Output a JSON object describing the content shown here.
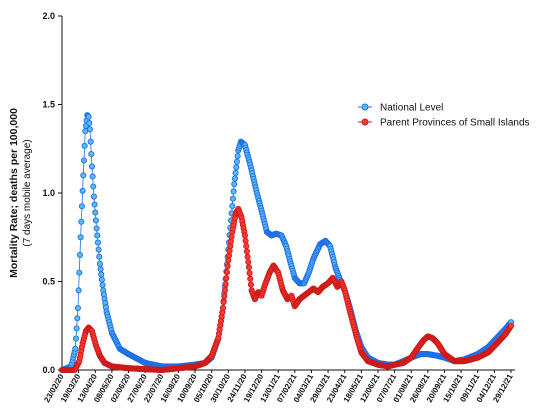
{
  "chart_data": {
    "type": "scatter",
    "title": "",
    "xlabel": "",
    "ylabel": "Mortality Rate; deaths per 100,000",
    "ylabel_secondary": "(7 days mobile average)",
    "ylim": [
      0,
      2.0
    ],
    "yticks": [
      "0.0",
      "0.5",
      "1.0",
      "1.5",
      "2.0"
    ],
    "x_start": "23/02/20",
    "x_end": "29/12/21",
    "xticks": [
      "23/02/20",
      "19/03/20",
      "13/04/20",
      "08/05/20",
      "02/06/20",
      "27/06/20",
      "22/07/20",
      "16/08/20",
      "10/09/20",
      "05/10/20",
      "30/10/20",
      "24/11/20",
      "19/12/20",
      "13/01/21",
      "07/02/21",
      "04/03/21",
      "29/03/21",
      "23/04/21",
      "18/05/21",
      "12/06/21",
      "07/07/21",
      "01/08/21",
      "26/08/21",
      "20/09/21",
      "15/10/21",
      "09/11/21",
      "04/12/21",
      "29/12/21"
    ],
    "legend_position": "right",
    "grid": false,
    "series": [
      {
        "name": "National Level",
        "color": "#1f6fe5",
        "fill": "#5bb8f5",
        "keypoints": [
          [
            "23/02/20",
            0.0
          ],
          [
            "08/03/20",
            0.02
          ],
          [
            "14/03/20",
            0.12
          ],
          [
            "18/03/20",
            0.35
          ],
          [
            "22/03/20",
            0.75
          ],
          [
            "26/03/20",
            1.1
          ],
          [
            "29/03/20",
            1.35
          ],
          [
            "01/04/20",
            1.44
          ],
          [
            "03/04/20",
            1.43
          ],
          [
            "05/04/20",
            1.36
          ],
          [
            "08/04/20",
            1.15
          ],
          [
            "11/04/20",
            0.98
          ],
          [
            "15/04/20",
            0.8
          ],
          [
            "20/04/20",
            0.6
          ],
          [
            "25/04/20",
            0.45
          ],
          [
            "30/04/20",
            0.33
          ],
          [
            "08/05/20",
            0.21
          ],
          [
            "20/05/20",
            0.12
          ],
          [
            "02/06/20",
            0.09
          ],
          [
            "27/06/20",
            0.04
          ],
          [
            "22/07/20",
            0.02
          ],
          [
            "16/08/20",
            0.02
          ],
          [
            "10/09/20",
            0.03
          ],
          [
            "25/09/20",
            0.04
          ],
          [
            "05/10/20",
            0.07
          ],
          [
            "15/10/20",
            0.18
          ],
          [
            "22/10/20",
            0.35
          ],
          [
            "30/10/20",
            0.68
          ],
          [
            "08/11/20",
            1.05
          ],
          [
            "14/11/20",
            1.24
          ],
          [
            "18/11/20",
            1.29
          ],
          [
            "24/11/20",
            1.27
          ],
          [
            "02/12/20",
            1.16
          ],
          [
            "12/12/20",
            1.0
          ],
          [
            "19/12/20",
            0.9
          ],
          [
            "27/12/20",
            0.78
          ],
          [
            "03/01/21",
            0.76
          ],
          [
            "10/01/21",
            0.77
          ],
          [
            "18/01/21",
            0.76
          ],
          [
            "25/01/21",
            0.7
          ],
          [
            "01/02/21",
            0.6
          ],
          [
            "07/02/21",
            0.52
          ],
          [
            "14/02/21",
            0.49
          ],
          [
            "21/02/21",
            0.49
          ],
          [
            "28/02/21",
            0.55
          ],
          [
            "07/03/21",
            0.63
          ],
          [
            "17/03/21",
            0.71
          ],
          [
            "25/03/21",
            0.73
          ],
          [
            "01/04/21",
            0.7
          ],
          [
            "09/04/21",
            0.58
          ],
          [
            "17/04/21",
            0.5
          ],
          [
            "23/04/21",
            0.45
          ],
          [
            "01/05/21",
            0.35
          ],
          [
            "10/05/21",
            0.22
          ],
          [
            "18/05/21",
            0.13
          ],
          [
            "28/05/21",
            0.07
          ],
          [
            "12/06/21",
            0.04
          ],
          [
            "27/06/21",
            0.03
          ],
          [
            "07/07/21",
            0.03
          ],
          [
            "20/07/21",
            0.05
          ],
          [
            "01/08/21",
            0.07
          ],
          [
            "15/08/21",
            0.09
          ],
          [
            "26/08/21",
            0.09
          ],
          [
            "10/09/21",
            0.08
          ],
          [
            "20/09/21",
            0.07
          ],
          [
            "05/10/21",
            0.05
          ],
          [
            "20/10/21",
            0.06
          ],
          [
            "09/11/21",
            0.09
          ],
          [
            "25/11/21",
            0.13
          ],
          [
            "10/12/21",
            0.19
          ],
          [
            "20/12/21",
            0.23
          ],
          [
            "29/12/21",
            0.27
          ]
        ]
      },
      {
        "name": "Parent Provinces of Small Islands",
        "color": "#cc1a1a",
        "fill": "#ff3b30",
        "keypoints": [
          [
            "23/02/20",
            0.0
          ],
          [
            "13/03/20",
            0.0
          ],
          [
            "20/03/20",
            0.05
          ],
          [
            "25/03/20",
            0.15
          ],
          [
            "30/03/20",
            0.22
          ],
          [
            "03/04/20",
            0.24
          ],
          [
            "08/04/20",
            0.22
          ],
          [
            "14/04/20",
            0.14
          ],
          [
            "20/04/20",
            0.08
          ],
          [
            "27/04/20",
            0.04
          ],
          [
            "08/05/20",
            0.02
          ],
          [
            "02/06/20",
            0.01
          ],
          [
            "22/07/20",
            0.0
          ],
          [
            "16/08/20",
            0.01
          ],
          [
            "10/09/20",
            0.02
          ],
          [
            "25/09/20",
            0.04
          ],
          [
            "05/10/20",
            0.08
          ],
          [
            "15/10/20",
            0.18
          ],
          [
            "22/10/20",
            0.35
          ],
          [
            "30/10/20",
            0.62
          ],
          [
            "05/11/20",
            0.78
          ],
          [
            "10/11/20",
            0.88
          ],
          [
            "14/11/20",
            0.91
          ],
          [
            "19/11/20",
            0.86
          ],
          [
            "24/11/20",
            0.76
          ],
          [
            "30/11/20",
            0.58
          ],
          [
            "04/12/20",
            0.45
          ],
          [
            "09/12/20",
            0.4
          ],
          [
            "14/12/20",
            0.44
          ],
          [
            "19/12/20",
            0.42
          ],
          [
            "24/12/20",
            0.48
          ],
          [
            "31/12/20",
            0.55
          ],
          [
            "06/01/21",
            0.59
          ],
          [
            "13/01/21",
            0.55
          ],
          [
            "20/01/21",
            0.45
          ],
          [
            "27/01/21",
            0.4
          ],
          [
            "02/02/21",
            0.42
          ],
          [
            "07/02/21",
            0.36
          ],
          [
            "14/02/21",
            0.4
          ],
          [
            "21/02/21",
            0.42
          ],
          [
            "28/02/21",
            0.44
          ],
          [
            "07/03/21",
            0.46
          ],
          [
            "14/03/21",
            0.44
          ],
          [
            "21/03/21",
            0.47
          ],
          [
            "29/03/21",
            0.49
          ],
          [
            "05/04/21",
            0.52
          ],
          [
            "12/04/21",
            0.47
          ],
          [
            "18/04/21",
            0.5
          ],
          [
            "23/04/21",
            0.45
          ],
          [
            "01/05/21",
            0.33
          ],
          [
            "10/05/21",
            0.2
          ],
          [
            "18/05/21",
            0.1
          ],
          [
            "28/05/21",
            0.05
          ],
          [
            "12/06/21",
            0.03
          ],
          [
            "27/06/21",
            0.02
          ],
          [
            "07/07/21",
            0.03
          ],
          [
            "20/07/21",
            0.04
          ],
          [
            "01/08/21",
            0.07
          ],
          [
            "12/08/21",
            0.13
          ],
          [
            "20/08/21",
            0.17
          ],
          [
            "26/08/21",
            0.19
          ],
          [
            "02/09/21",
            0.18
          ],
          [
            "10/09/21",
            0.15
          ],
          [
            "20/09/21",
            0.09
          ],
          [
            "05/10/21",
            0.05
          ],
          [
            "20/10/21",
            0.05
          ],
          [
            "09/11/21",
            0.07
          ],
          [
            "25/11/21",
            0.1
          ],
          [
            "10/12/21",
            0.16
          ],
          [
            "20/12/21",
            0.2
          ],
          [
            "29/12/21",
            0.25
          ]
        ]
      }
    ]
  }
}
